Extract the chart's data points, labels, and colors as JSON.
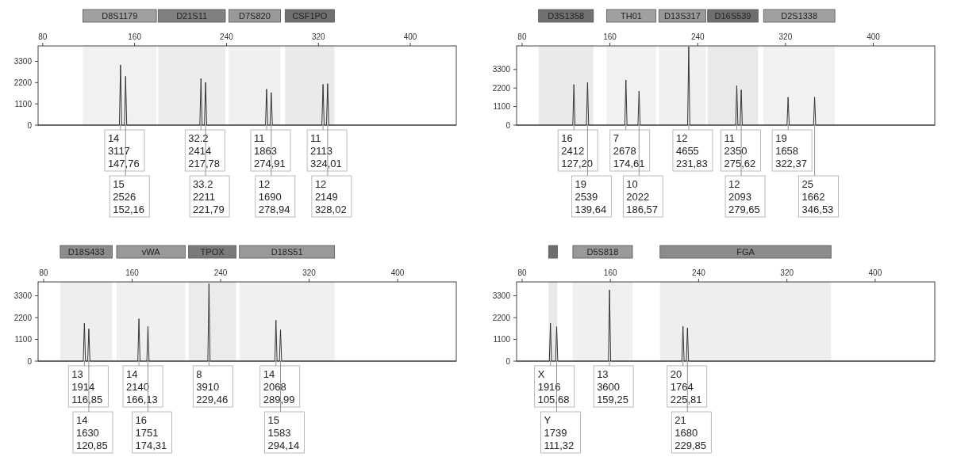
{
  "chart_data": [
    {
      "type": "line",
      "xlim": [
        76,
        440
      ],
      "ylim": [
        0,
        4100
      ],
      "xticks": [
        80,
        160,
        240,
        320,
        400
      ],
      "yticks": [
        0,
        1100,
        2200,
        3300
      ],
      "series": [
        {
          "color": "#333333",
          "x": [
            76,
            146.76,
            147.76,
            148.76,
            151.16,
            152.16,
            153.16,
            216.78,
            217.78,
            218.78,
            220.79,
            221.79,
            222.79,
            273.91,
            274.91,
            275.91,
            277.94,
            278.94,
            279.94,
            323.01,
            324.01,
            325.01,
            327.02,
            328.02,
            329.02,
            440
          ],
          "values": [
            0,
            0,
            3117,
            0,
            0,
            2526,
            0,
            0,
            2414,
            0,
            0,
            2211,
            0,
            0,
            1863,
            0,
            0,
            1690,
            0,
            0,
            2113,
            0,
            0,
            2149,
            0,
            0
          ]
        }
      ],
      "bands": [
        {
          "axis": "x",
          "from": 115,
          "to": 179,
          "label": "D8S1179",
          "color": "#a0a0a0"
        },
        {
          "axis": "x",
          "from": 180.5,
          "to": 239,
          "label": "D21S11",
          "color": "#808080"
        },
        {
          "axis": "x",
          "from": 242,
          "to": 287,
          "label": "D7S820",
          "color": "#999999"
        },
        {
          "axis": "x",
          "from": 291,
          "to": 334,
          "label": "CSF1PO",
          "color": "#707070"
        }
      ],
      "annotations": [
        {
          "text": "14\n3117\n147,76",
          "x": 147.76
        },
        {
          "text": "15\n2526\n152,16",
          "x": 152.16
        },
        {
          "text": "32.2\n2414\n217,78",
          "x": 217.78
        },
        {
          "text": "33.2\n2211\n221,79",
          "x": 221.79
        },
        {
          "text": "11\n1863\n274,91",
          "x": 274.91
        },
        {
          "text": "12\n1690\n278,94",
          "x": 278.94
        },
        {
          "text": "11\n2113\n324,01",
          "x": 324.01
        },
        {
          "text": "12\n2149\n328,02",
          "x": 328.02
        }
      ]
    },
    {
      "type": "line",
      "xlim": [
        75,
        456
      ],
      "ylim": [
        0,
        4700
      ],
      "xticks": [
        80,
        160,
        240,
        320,
        400
      ],
      "yticks": [
        0,
        1100,
        2200,
        3300
      ],
      "series": [
        {
          "color": "#333333",
          "x": [
            75,
            126.2,
            127.2,
            128.2,
            138.64,
            139.64,
            140.64,
            173.61,
            174.61,
            175.61,
            185.57,
            186.57,
            187.57,
            230.83,
            231.83,
            232.83,
            274.62,
            275.62,
            276.62,
            278.65,
            279.65,
            280.65,
            321.37,
            322.37,
            323.37,
            345.53,
            346.53,
            347.53,
            456
          ],
          "values": [
            0,
            0,
            2412,
            0,
            0,
            2539,
            0,
            0,
            2678,
            0,
            0,
            2022,
            0,
            0,
            4655,
            0,
            0,
            2350,
            0,
            0,
            2093,
            0,
            0,
            1658,
            0,
            0,
            1662,
            0,
            0
          ]
        }
      ],
      "bands": [
        {
          "axis": "x",
          "from": 95,
          "to": 145,
          "label": "D3S1358",
          "color": "#707070"
        },
        {
          "axis": "x",
          "from": 157,
          "to": 202,
          "label": "TH01",
          "color": "#a0a0a0"
        },
        {
          "axis": "x",
          "from": 204.6,
          "to": 247.5,
          "label": "D13S317",
          "color": "#999999"
        },
        {
          "axis": "x",
          "from": 249,
          "to": 295,
          "label": "D16S539",
          "color": "#6e6e6e"
        },
        {
          "axis": "x",
          "from": 300,
          "to": 365,
          "label": "D2S1338",
          "color": "#a0a0a0"
        }
      ],
      "annotations": [
        {
          "text": "16\n2412\n127,20",
          "x": 127.2
        },
        {
          "text": "19\n2539\n139,64",
          "x": 139.64
        },
        {
          "text": "7\n2678\n174,61",
          "x": 174.61
        },
        {
          "text": "10\n2022\n186,57",
          "x": 186.57
        },
        {
          "text": "12\n4655\n231,83",
          "x": 231.83
        },
        {
          "text": "11\n2350\n275,62",
          "x": 275.62
        },
        {
          "text": "12\n2093\n279,65",
          "x": 279.65
        },
        {
          "text": "19\n1658\n322,37",
          "x": 322.37
        },
        {
          "text": "25\n1662\n346,53",
          "x": 346.53
        }
      ]
    },
    {
      "type": "line",
      "xlim": [
        75,
        453
      ],
      "ylim": [
        0,
        4000
      ],
      "xticks": [
        80,
        160,
        240,
        320,
        400
      ],
      "yticks": [
        0,
        1100,
        2200,
        3300
      ],
      "series": [
        {
          "color": "#333333",
          "x": [
            75,
            115.85,
            116.85,
            117.85,
            119.85,
            120.85,
            121.85,
            165.13,
            166.13,
            167.13,
            173.31,
            174.31,
            175.31,
            228.46,
            229.46,
            230.46,
            288.99,
            289.99,
            290.99,
            293.14,
            294.14,
            295.14,
            453
          ],
          "values": [
            0,
            0,
            1914,
            0,
            0,
            1630,
            0,
            0,
            2140,
            0,
            0,
            1751,
            0,
            0,
            3910,
            0,
            0,
            2068,
            0,
            0,
            1583,
            0,
            0
          ]
        }
      ],
      "bands": [
        {
          "axis": "x",
          "from": 95,
          "to": 142,
          "label": "D18S433",
          "color": "#8c8c8c"
        },
        {
          "axis": "x",
          "from": 146,
          "to": 208,
          "label": "vWA",
          "color": "#999999"
        },
        {
          "axis": "x",
          "from": 211,
          "to": 254,
          "label": "TPOX",
          "color": "#7a7a7a"
        },
        {
          "axis": "x",
          "from": 257,
          "to": 343,
          "label": "D18S51",
          "color": "#999999"
        }
      ],
      "annotations": [
        {
          "text": "13\n1914\n116,85",
          "x": 116.85
        },
        {
          "text": "14\n1630\n120,85",
          "x": 120.85
        },
        {
          "text": "14\n2140\n166,13",
          "x": 166.13
        },
        {
          "text": "16\n1751\n174,31",
          "x": 174.31
        },
        {
          "text": "8\n3910\n229,46",
          "x": 229.46
        },
        {
          "text": "14\n2068\n289,99",
          "x": 289.99
        },
        {
          "text": "15\n1583\n294,14",
          "x": 294.14
        }
      ]
    },
    {
      "type": "line",
      "xlim": [
        75,
        454
      ],
      "ylim": [
        0,
        4000
      ],
      "xticks": [
        80,
        160,
        240,
        320,
        400
      ],
      "yticks": [
        0,
        1100,
        2200,
        3300
      ],
      "series": [
        {
          "color": "#333333",
          "x": [
            75,
            104.68,
            105.68,
            106.68,
            110.32,
            111.32,
            112.32,
            158.25,
            159.25,
            160.25,
            224.81,
            225.81,
            226.81,
            228.85,
            229.85,
            230.85,
            454
          ],
          "values": [
            0,
            0,
            1916,
            0,
            0,
            1739,
            0,
            0,
            3600,
            0,
            0,
            1764,
            0,
            0,
            1680,
            0,
            0
          ]
        }
      ],
      "bands": [
        {
          "axis": "x",
          "from": 104,
          "to": 112,
          "label": null,
          "color": "#6e6e6e"
        },
        {
          "axis": "x",
          "from": 126,
          "to": 180,
          "label": "D5S818",
          "color": "#999999"
        },
        {
          "axis": "x",
          "from": 205,
          "to": 360,
          "label": "FGA",
          "color": "#8c8c8c"
        }
      ],
      "annotations": [
        {
          "text": "X\n1916\n105,68",
          "x": 105.68
        },
        {
          "text": "Y\n1739\n111,32",
          "x": 111.32
        },
        {
          "text": "13\n3600\n159,25",
          "x": 159.25
        },
        {
          "text": "20\n1764\n225,81",
          "x": 225.81
        },
        {
          "text": "21\n1680\n229,85",
          "x": 229.85
        }
      ]
    }
  ]
}
